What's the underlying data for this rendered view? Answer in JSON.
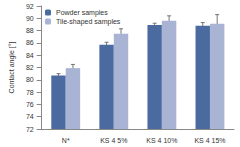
{
  "chart_data": {
    "type": "bar",
    "categories": [
      "N*",
      "KS 4 5%",
      "KS 4 10%",
      "KS 4 15%"
    ],
    "series": [
      {
        "name": "Powder samples",
        "color": "#4a6aa0",
        "values": [
          80.7,
          85.7,
          88.9,
          88.8
        ],
        "errors": [
          0.3,
          0.4,
          0.3,
          0.5
        ]
      },
      {
        "name": "Tile-shaped samples",
        "color": "#a9b3d3",
        "values": [
          81.9,
          87.5,
          89.6,
          89.1
        ],
        "errors": [
          0.6,
          0.8,
          0.8,
          1.5
        ]
      }
    ],
    "y_label": "Contact angle [°]",
    "ylim": [
      72,
      92
    ],
    "yticks": [
      72,
      74,
      76,
      78,
      80,
      82,
      84,
      86,
      88,
      90,
      92
    ],
    "grid": false,
    "legend": "upper left"
  }
}
